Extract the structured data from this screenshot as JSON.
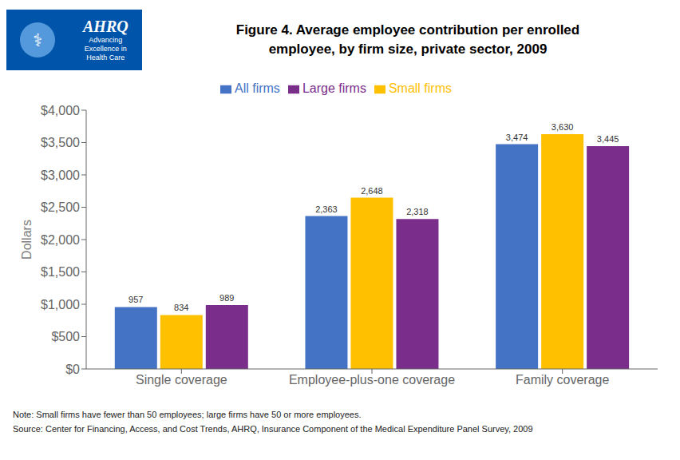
{
  "chart_data": {
    "type": "bar",
    "title": "Figure 4. Average employee contribution per enrolled\nemployee, by firm size, private sector, 2009",
    "ylabel": "Dollars",
    "categories": [
      "Single coverage",
      "Employee-plus-one coverage",
      "Family coverage"
    ],
    "series": [
      {
        "name": "All firms",
        "color": "#4472C4",
        "values": [
          957,
          2363,
          3474
        ],
        "value_labels": [
          "957",
          "2,363",
          "3,474"
        ]
      },
      {
        "name": "Small firms",
        "color": "#FFC000",
        "values": [
          834,
          2648,
          3630
        ],
        "value_labels": [
          "834",
          "2,648",
          "3,630"
        ]
      },
      {
        "name": "Large firms",
        "color": "#7B2D8B",
        "values": [
          989,
          2318,
          3445
        ],
        "value_labels": [
          "989",
          "2,318",
          "3,445"
        ]
      }
    ],
    "ylim": [
      0,
      4000
    ],
    "yticks": [
      {
        "value": 0,
        "label": "$0"
      },
      {
        "value": 500,
        "label": "$500"
      },
      {
        "value": 1000,
        "label": "$1,000"
      },
      {
        "value": 1500,
        "label": "$1,500"
      },
      {
        "value": 2000,
        "label": "$2,000"
      },
      {
        "value": 2500,
        "label": "$2,500"
      },
      {
        "value": 3000,
        "label": "$3,000"
      },
      {
        "value": 3500,
        "label": "$3,500"
      },
      {
        "value": 4000,
        "label": "$4,000"
      }
    ],
    "data_labels": true,
    "grid": false,
    "legend": "top",
    "logo": [
      "⚕",
      "AHRQ",
      "Advancing",
      "Excellence in",
      "Health Care"
    ],
    "note": "Note: Small firms have fewer than 50 employees; large firms have 50 or more employees.",
    "source": "Source: Center for Financing, Access, and Cost Trends, AHRQ, Insurance Component of the Medical Expenditure Panel Survey, 2009"
  }
}
